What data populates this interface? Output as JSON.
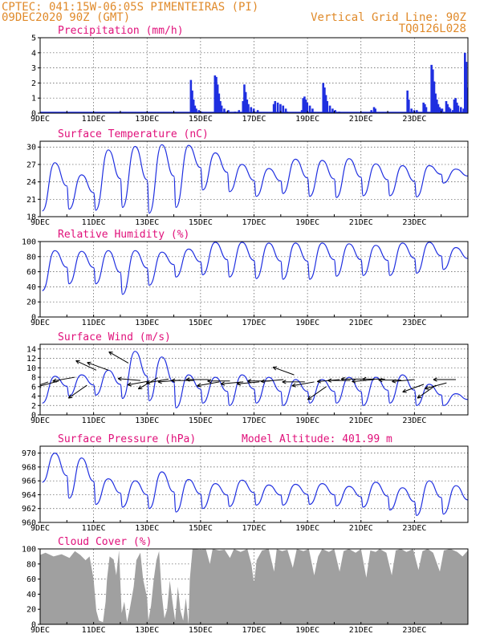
{
  "header": {
    "line1_left": "CPTEC:  041:15W-06:05S  PIMENTEIRAS (PI)",
    "line2_left": "09DEC2020 90Z (GMT)",
    "line1_right": "Vertical Grid Line: 90Z",
    "line2_right": "TQ0126L028"
  },
  "x_axis": {
    "labels": [
      "9DEC",
      "11DEC",
      "13DEC",
      "15DEC",
      "17DEC",
      "19DEC",
      "21DEC",
      "23DEC"
    ],
    "day_range": [
      9,
      24
    ]
  },
  "colors": {
    "series": "#1f2fe0",
    "cloud": "#a0a0a0",
    "title": "#e0107a",
    "header": "#e08a2a"
  },
  "chart_data": [
    {
      "type": "bar",
      "title": "Precipitation (mm/h)",
      "ylim": [
        0,
        5
      ],
      "yticks": [
        0,
        1,
        2,
        3,
        4,
        5
      ],
      "bars": [
        [
          14.6,
          2.2
        ],
        [
          14.65,
          1.5
        ],
        [
          14.7,
          0.9
        ],
        [
          14.75,
          0.5
        ],
        [
          14.8,
          0.3
        ],
        [
          14.9,
          0.2
        ],
        [
          15.0,
          0.1
        ],
        [
          15.5,
          2.5
        ],
        [
          15.55,
          2.4
        ],
        [
          15.6,
          1.9
        ],
        [
          15.65,
          1.3
        ],
        [
          15.7,
          0.8
        ],
        [
          15.75,
          0.5
        ],
        [
          15.85,
          0.3
        ],
        [
          16.0,
          0.2
        ],
        [
          16.25,
          0.1
        ],
        [
          16.4,
          0.2
        ],
        [
          16.55,
          0.8
        ],
        [
          16.6,
          1.9
        ],
        [
          16.65,
          1.4
        ],
        [
          16.7,
          0.9
        ],
        [
          16.75,
          0.6
        ],
        [
          16.85,
          0.4
        ],
        [
          16.95,
          0.3
        ],
        [
          17.1,
          0.2
        ],
        [
          17.7,
          0.6
        ],
        [
          17.75,
          0.8
        ],
        [
          17.85,
          0.7
        ],
        [
          17.95,
          0.6
        ],
        [
          18.05,
          0.5
        ],
        [
          18.15,
          0.3
        ],
        [
          18.2,
          0.1
        ],
        [
          18.75,
          0.2
        ],
        [
          18.8,
          1.0
        ],
        [
          18.85,
          1.1
        ],
        [
          18.9,
          0.9
        ],
        [
          18.95,
          0.7
        ],
        [
          19.05,
          0.5
        ],
        [
          19.15,
          0.3
        ],
        [
          19.55,
          2.0
        ],
        [
          19.6,
          1.7
        ],
        [
          19.65,
          1.2
        ],
        [
          19.7,
          0.8
        ],
        [
          19.8,
          0.5
        ],
        [
          19.9,
          0.3
        ],
        [
          20.0,
          0.2
        ],
        [
          20.15,
          0.1
        ],
        [
          21.35,
          0.2
        ],
        [
          21.45,
          0.4
        ],
        [
          21.5,
          0.3
        ],
        [
          22.7,
          1.5
        ],
        [
          22.75,
          0.9
        ],
        [
          22.85,
          0.3
        ],
        [
          22.95,
          0.2
        ],
        [
          23.05,
          0.2
        ],
        [
          23.3,
          0.7
        ],
        [
          23.35,
          0.6
        ],
        [
          23.4,
          0.4
        ],
        [
          23.6,
          3.2
        ],
        [
          23.65,
          2.9
        ],
        [
          23.7,
          2.1
        ],
        [
          23.75,
          1.3
        ],
        [
          23.8,
          0.9
        ],
        [
          23.85,
          0.6
        ],
        [
          23.9,
          0.4
        ],
        [
          23.95,
          0.3
        ],
        [
          24.0,
          0.3
        ],
        [
          24.15,
          0.8
        ],
        [
          24.2,
          0.6
        ],
        [
          24.25,
          0.4
        ],
        [
          24.3,
          0.3
        ],
        [
          24.4,
          0.2
        ],
        [
          24.45,
          0.9
        ],
        [
          24.5,
          1.0
        ],
        [
          24.55,
          0.7
        ],
        [
          24.6,
          0.5
        ],
        [
          24.7,
          0.4
        ],
        [
          24.8,
          0.3
        ],
        [
          24.85,
          4.0
        ],
        [
          24.9,
          3.4
        ],
        [
          24.95,
          1.7
        ],
        [
          25.0,
          0.9
        ],
        [
          25.05,
          0.3
        ]
      ]
    },
    {
      "type": "line",
      "title": "Surface Temperature (nC)",
      "ylim": [
        18,
        31
      ],
      "yticks": [
        18,
        21,
        24,
        27,
        30
      ],
      "days": [
        {
          "tmax": 27.3,
          "tmin": 19.0
        },
        {
          "tmax": 25.2,
          "tmin": 19.3
        },
        {
          "tmax": 29.5,
          "tmin": 19.1
        },
        {
          "tmax": 30.1,
          "tmin": 19.6
        },
        {
          "tmax": 30.4,
          "tmin": 18.6
        },
        {
          "tmax": 30.3,
          "tmin": 19.6
        },
        {
          "tmax": 29.0,
          "tmin": 22.6
        },
        {
          "tmax": 27.0,
          "tmin": 22.3
        },
        {
          "tmax": 26.3,
          "tmin": 21.5
        },
        {
          "tmax": 27.9,
          "tmin": 22.0
        },
        {
          "tmax": 27.7,
          "tmin": 21.5
        },
        {
          "tmax": 28.0,
          "tmin": 21.3
        },
        {
          "tmax": 27.1,
          "tmin": 21.6
        },
        {
          "tmax": 26.8,
          "tmin": 21.6
        },
        {
          "tmax": 26.8,
          "tmin": 21.4
        },
        {
          "tmax": 26.2,
          "tmin": 23.8
        }
      ]
    },
    {
      "type": "line",
      "title": "Relative Humidity (%)",
      "ylim": [
        0,
        100
      ],
      "yticks": [
        0,
        20,
        40,
        60,
        80,
        100
      ],
      "days": [
        {
          "max": 88,
          "min": 35
        },
        {
          "max": 87,
          "min": 44
        },
        {
          "max": 88,
          "min": 44
        },
        {
          "max": 88,
          "min": 30
        },
        {
          "max": 86,
          "min": 42
        },
        {
          "max": 90,
          "min": 53
        },
        {
          "max": 99,
          "min": 56
        },
        {
          "max": 99,
          "min": 53
        },
        {
          "max": 98,
          "min": 51
        },
        {
          "max": 98,
          "min": 50
        },
        {
          "max": 98,
          "min": 50
        },
        {
          "max": 97,
          "min": 54
        },
        {
          "max": 95,
          "min": 55
        },
        {
          "max": 98,
          "min": 55
        },
        {
          "max": 99,
          "min": 58
        },
        {
          "max": 92,
          "min": 63
        }
      ]
    },
    {
      "type": "line",
      "title": "Surface Wind (m/s)",
      "ylim": [
        0,
        15
      ],
      "yticks": [
        0,
        2,
        4,
        6,
        8,
        10,
        12,
        14
      ],
      "days": [
        {
          "max": 8.2,
          "min": 2.5
        },
        {
          "max": 8.5,
          "min": 4.0
        },
        {
          "max": 9.5,
          "min": 4.2
        },
        {
          "max": 13.5,
          "min": 3.5
        },
        {
          "max": 12.3,
          "min": 3.0
        },
        {
          "max": 8.5,
          "min": 1.5
        },
        {
          "max": 8.0,
          "min": 2.5
        },
        {
          "max": 8.5,
          "min": 2.0
        },
        {
          "max": 8.0,
          "min": 2.5
        },
        {
          "max": 7.5,
          "min": 2.0
        },
        {
          "max": 7.5,
          "min": 2.5
        },
        {
          "max": 8.0,
          "min": 2.5
        },
        {
          "max": 8.0,
          "min": 2.0
        },
        {
          "max": 8.5,
          "min": 2.5
        },
        {
          "max": 6.5,
          "min": 2.0
        },
        {
          "max": 4.5,
          "min": 2.0
        }
      ],
      "wind_vectors": [
        [
          9.3,
          7.0,
          200
        ],
        [
          9.7,
          7.2,
          195
        ],
        [
          10.3,
          8.0,
          190
        ],
        [
          10.75,
          6.3,
          215
        ],
        [
          11.1,
          9.5,
          155
        ],
        [
          11.55,
          9.5,
          160
        ],
        [
          12.3,
          11.0,
          150
        ],
        [
          12.75,
          7.3,
          175
        ],
        [
          13.1,
          7.2,
          190
        ],
        [
          13.4,
          7.9,
          210
        ],
        [
          13.8,
          7.6,
          190
        ],
        [
          14.25,
          7.4,
          185
        ],
        [
          14.75,
          7.3,
          180
        ],
        [
          15.3,
          7.5,
          180
        ],
        [
          15.7,
          7.0,
          190
        ],
        [
          16.1,
          7.2,
          180
        ],
        [
          16.6,
          7.0,
          185
        ],
        [
          17.2,
          7.0,
          185
        ],
        [
          17.6,
          7.2,
          180
        ],
        [
          18.1,
          7.5,
          185
        ],
        [
          18.5,
          8.5,
          160
        ],
        [
          18.9,
          7.0,
          180
        ],
        [
          19.25,
          7.0,
          190
        ],
        [
          19.7,
          6.0,
          215
        ],
        [
          20.2,
          7.5,
          185
        ],
        [
          20.6,
          7.3,
          180
        ],
        [
          21.1,
          7.6,
          180
        ],
        [
          21.5,
          7.5,
          185
        ],
        [
          21.9,
          7.6,
          180
        ],
        [
          22.5,
          7.4,
          180
        ],
        [
          23.0,
          7.5,
          185
        ],
        [
          23.35,
          6.5,
          200
        ],
        [
          23.8,
          6.3,
          215
        ],
        [
          24.2,
          6.8,
          195
        ],
        [
          24.55,
          7.5,
          180
        ]
      ]
    },
    {
      "type": "line",
      "title": "Surface Pressure (hPa)",
      "annotation": "Model Altitude: 401.99 m",
      "ylim": [
        960,
        971
      ],
      "yticks": [
        960,
        962,
        964,
        966,
        968,
        970
      ],
      "days": [
        {
          "max": 970.0,
          "min": 965.8
        },
        {
          "max": 969.3,
          "min": 963.5
        },
        {
          "max": 966.3,
          "min": 962.6
        },
        {
          "max": 966.0,
          "min": 962.2
        },
        {
          "max": 967.3,
          "min": 962.0
        },
        {
          "max": 966.2,
          "min": 961.5
        },
        {
          "max": 965.6,
          "min": 962.0
        },
        {
          "max": 966.1,
          "min": 962.3
        },
        {
          "max": 965.4,
          "min": 962.5
        },
        {
          "max": 965.5,
          "min": 962.5
        },
        {
          "max": 965.6,
          "min": 962.6
        },
        {
          "max": 965.2,
          "min": 962.4
        },
        {
          "max": 965.8,
          "min": 962.2
        },
        {
          "max": 965.0,
          "min": 961.8
        },
        {
          "max": 966.0,
          "min": 961.0
        },
        {
          "max": 965.3,
          "min": 961.2
        }
      ]
    },
    {
      "type": "area",
      "title": "Cloud Cover (%)",
      "ylim": [
        0,
        100
      ],
      "yticks": [
        0,
        20,
        40,
        60,
        80,
        100
      ],
      "points": [
        [
          9.0,
          92
        ],
        [
          9.2,
          95
        ],
        [
          9.5,
          90
        ],
        [
          9.8,
          93
        ],
        [
          10.1,
          88
        ],
        [
          10.3,
          97
        ],
        [
          10.5,
          92
        ],
        [
          10.7,
          85
        ],
        [
          10.85,
          90
        ],
        [
          11.0,
          60
        ],
        [
          11.1,
          18
        ],
        [
          11.2,
          5
        ],
        [
          11.35,
          3
        ],
        [
          11.45,
          30
        ],
        [
          11.5,
          60
        ],
        [
          11.6,
          90
        ],
        [
          11.75,
          86
        ],
        [
          11.85,
          65
        ],
        [
          11.95,
          98
        ],
        [
          12.05,
          15
        ],
        [
          12.15,
          30
        ],
        [
          12.25,
          3
        ],
        [
          12.35,
          20
        ],
        [
          12.5,
          50
        ],
        [
          12.6,
          85
        ],
        [
          12.75,
          95
        ],
        [
          12.85,
          60
        ],
        [
          13.0,
          35
        ],
        [
          13.05,
          5
        ],
        [
          13.15,
          25
        ],
        [
          13.25,
          60
        ],
        [
          13.35,
          85
        ],
        [
          13.45,
          97
        ],
        [
          13.55,
          40
        ],
        [
          13.65,
          8
        ],
        [
          13.75,
          20
        ],
        [
          13.85,
          58
        ],
        [
          13.95,
          30
        ],
        [
          14.05,
          5
        ],
        [
          14.15,
          50
        ],
        [
          14.25,
          18
        ],
        [
          14.35,
          5
        ],
        [
          14.45,
          35
        ],
        [
          14.55,
          0
        ],
        [
          14.6,
          60
        ],
        [
          14.7,
          100
        ],
        [
          15.0,
          99
        ],
        [
          15.2,
          100
        ],
        [
          15.35,
          80
        ],
        [
          15.45,
          100
        ],
        [
          15.7,
          98
        ],
        [
          15.9,
          99
        ],
        [
          16.1,
          88
        ],
        [
          16.25,
          100
        ],
        [
          16.5,
          96
        ],
        [
          16.75,
          100
        ],
        [
          16.9,
          80
        ],
        [
          17.0,
          55
        ],
        [
          17.1,
          85
        ],
        [
          17.3,
          98
        ],
        [
          17.55,
          100
        ],
        [
          17.75,
          70
        ],
        [
          17.85,
          100
        ],
        [
          18.05,
          97
        ],
        [
          18.25,
          99
        ],
        [
          18.45,
          75
        ],
        [
          18.6,
          100
        ],
        [
          18.85,
          97
        ],
        [
          19.05,
          100
        ],
        [
          19.25,
          65
        ],
        [
          19.4,
          90
        ],
        [
          19.55,
          100
        ],
        [
          19.8,
          96
        ],
        [
          20.0,
          100
        ],
        [
          20.2,
          70
        ],
        [
          20.35,
          97
        ],
        [
          20.55,
          100
        ],
        [
          20.8,
          95
        ],
        [
          21.0,
          100
        ],
        [
          21.2,
          62
        ],
        [
          21.35,
          98
        ],
        [
          21.55,
          96
        ],
        [
          21.7,
          100
        ],
        [
          21.95,
          95
        ],
        [
          22.15,
          65
        ],
        [
          22.3,
          98
        ],
        [
          22.5,
          100
        ],
        [
          22.7,
          96
        ],
        [
          22.95,
          100
        ],
        [
          23.15,
          72
        ],
        [
          23.3,
          97
        ],
        [
          23.5,
          100
        ],
        [
          23.7,
          95
        ],
        [
          23.95,
          70
        ],
        [
          24.1,
          98
        ],
        [
          24.35,
          100
        ],
        [
          24.6,
          96
        ],
        [
          24.8,
          90
        ],
        [
          25.0,
          98
        ],
        [
          25.1,
          96
        ]
      ]
    }
  ]
}
